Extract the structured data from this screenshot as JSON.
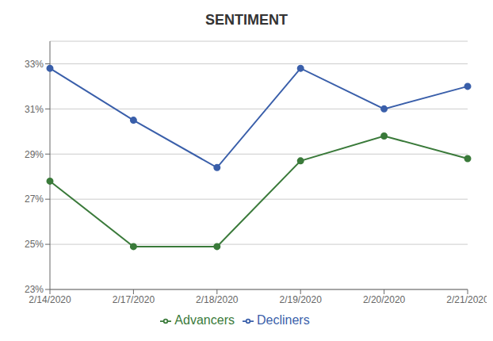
{
  "chart_data": {
    "type": "line",
    "title": "SENTIMENT",
    "categories": [
      "2/14/2020",
      "2/17/2020",
      "2/18/2020",
      "2/19/2020",
      "2/20/2020",
      "2/21/2020"
    ],
    "series": [
      {
        "name": "Decliners",
        "color": "#3a5faa",
        "marker": "circle",
        "line_style": "solid",
        "values": [
          0.328,
          0.305,
          0.284,
          0.328,
          0.31,
          0.32
        ]
      },
      {
        "name": "Advancers",
        "color": "#3a7a3a",
        "marker": "circle",
        "line_style": "solid",
        "values": [
          0.278,
          0.249,
          0.249,
          0.287,
          0.298,
          0.288
        ]
      }
    ],
    "ylim": [
      0.23,
      0.34
    ],
    "yticks": [
      {
        "value": 0.23,
        "label": "23%"
      },
      {
        "value": 0.25,
        "label": "25%"
      },
      {
        "value": 0.27,
        "label": "27%"
      },
      {
        "value": 0.29,
        "label": "29%"
      },
      {
        "value": 0.31,
        "label": "31%"
      },
      {
        "value": 0.33,
        "label": "33%"
      }
    ],
    "grid": true,
    "legend": "bottom"
  }
}
